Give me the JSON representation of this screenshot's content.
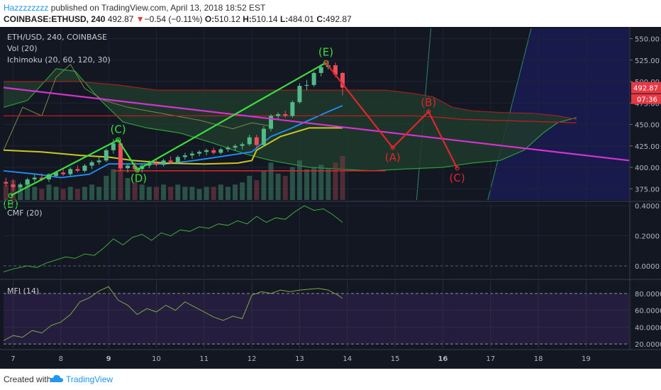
{
  "header": {
    "author": "Hazzzzzzzz",
    "published": "published on TradingView.com, April 13, 2018 18:52 EST",
    "symbol": "COINBASE:ETHUSD, 240",
    "last": "492.87",
    "change_arrow": "▼",
    "change": "−0.54 (−0.11%)",
    "open_label": "O:",
    "open": "510.12",
    "high_label": "H:",
    "high": "510.14",
    "low_label": "L:",
    "low": "484.01",
    "close_label": "C:",
    "close": "492.87"
  },
  "footer": {
    "created_with": "Created with",
    "brand": "TradingView",
    "logo_icon": "tradingview-cloud-icon"
  },
  "colors": {
    "background": "#131722",
    "candle_up": "#53b987",
    "candle_down": "#eb4d5c",
    "trendline": "#d433d0",
    "green_wave": "#3ddc3d",
    "red_wave": "#e0262a",
    "tenkan": "#1e90ff",
    "kijun": "#c8c820",
    "cloud": "#1f3a2c",
    "future_zone": "#191a4c",
    "price_badge": "#e53945"
  },
  "chart_data": [
    {
      "type": "line",
      "panel": "price",
      "labels": [
        "ETH/USD, 240, COINBASE",
        "Vol (20)",
        "Ichimoku (20, 60, 120, 30)"
      ],
      "yaxis_ticks": [
        "550.00",
        "525.00",
        "500.00",
        "475.00",
        "450.00",
        "425.00",
        "400.00",
        "375.00"
      ],
      "ylim": [
        362,
        562
      ],
      "xaxis_ticks": [
        "7",
        "8",
        "9",
        "10",
        "11",
        "12",
        "13",
        "14",
        "15",
        "16",
        "17",
        "18",
        "19"
      ],
      "xlim": [
        6.8,
        19.9
      ],
      "last_price_badge": "492.87",
      "countdown_badge": "07:36",
      "candles": [
        {
          "t": 6.85,
          "o": 383,
          "h": 388,
          "l": 378,
          "c": 381
        },
        {
          "t": 7.0,
          "o": 380,
          "h": 386,
          "l": 372,
          "c": 377
        },
        {
          "t": 7.15,
          "o": 377,
          "h": 382,
          "l": 372,
          "c": 380
        },
        {
          "t": 7.3,
          "o": 380,
          "h": 388,
          "l": 378,
          "c": 386
        },
        {
          "t": 7.45,
          "o": 386,
          "h": 392,
          "l": 383,
          "c": 388
        },
        {
          "t": 7.6,
          "o": 388,
          "h": 393,
          "l": 384,
          "c": 386
        },
        {
          "t": 7.75,
          "o": 386,
          "h": 393,
          "l": 383,
          "c": 392
        },
        {
          "t": 7.9,
          "o": 390,
          "h": 396,
          "l": 388,
          "c": 394
        },
        {
          "t": 8.05,
          "o": 394,
          "h": 398,
          "l": 390,
          "c": 392
        },
        {
          "t": 8.2,
          "o": 392,
          "h": 400,
          "l": 390,
          "c": 398
        },
        {
          "t": 8.35,
          "o": 398,
          "h": 402,
          "l": 394,
          "c": 396
        },
        {
          "t": 8.5,
          "o": 396,
          "h": 404,
          "l": 394,
          "c": 402
        },
        {
          "t": 8.65,
          "o": 402,
          "h": 408,
          "l": 398,
          "c": 406
        },
        {
          "t": 8.8,
          "o": 406,
          "h": 412,
          "l": 403,
          "c": 408
        },
        {
          "t": 8.95,
          "o": 408,
          "h": 422,
          "l": 406,
          "c": 420
        },
        {
          "t": 9.1,
          "o": 420,
          "h": 433,
          "l": 416,
          "c": 428
        },
        {
          "t": 9.25,
          "o": 428,
          "h": 432,
          "l": 396,
          "c": 399
        },
        {
          "t": 9.4,
          "o": 399,
          "h": 404,
          "l": 394,
          "c": 402
        },
        {
          "t": 9.55,
          "o": 402,
          "h": 406,
          "l": 396,
          "c": 398
        },
        {
          "t": 9.7,
          "o": 398,
          "h": 404,
          "l": 394,
          "c": 402
        },
        {
          "t": 9.85,
          "o": 402,
          "h": 408,
          "l": 399,
          "c": 405
        },
        {
          "t": 10.0,
          "o": 405,
          "h": 410,
          "l": 401,
          "c": 403
        },
        {
          "t": 10.15,
          "o": 403,
          "h": 410,
          "l": 401,
          "c": 408
        },
        {
          "t": 10.3,
          "o": 408,
          "h": 413,
          "l": 404,
          "c": 406
        },
        {
          "t": 10.45,
          "o": 406,
          "h": 414,
          "l": 404,
          "c": 412
        },
        {
          "t": 10.6,
          "o": 412,
          "h": 417,
          "l": 409,
          "c": 414
        },
        {
          "t": 10.75,
          "o": 414,
          "h": 419,
          "l": 410,
          "c": 416
        },
        {
          "t": 10.9,
          "o": 416,
          "h": 420,
          "l": 413,
          "c": 418
        },
        {
          "t": 11.05,
          "o": 418,
          "h": 422,
          "l": 414,
          "c": 420
        },
        {
          "t": 11.2,
          "o": 420,
          "h": 423,
          "l": 415,
          "c": 417
        },
        {
          "t": 11.35,
          "o": 417,
          "h": 423,
          "l": 415,
          "c": 421
        },
        {
          "t": 11.5,
          "o": 421,
          "h": 425,
          "l": 418,
          "c": 423
        },
        {
          "t": 11.65,
          "o": 423,
          "h": 427,
          "l": 419,
          "c": 425
        },
        {
          "t": 11.8,
          "o": 425,
          "h": 429,
          "l": 421,
          "c": 427
        },
        {
          "t": 11.95,
          "o": 427,
          "h": 438,
          "l": 425,
          "c": 435
        },
        {
          "t": 12.1,
          "o": 435,
          "h": 438,
          "l": 422,
          "c": 426
        },
        {
          "t": 12.25,
          "o": 426,
          "h": 448,
          "l": 424,
          "c": 445
        },
        {
          "t": 12.4,
          "o": 445,
          "h": 462,
          "l": 442,
          "c": 460
        },
        {
          "t": 12.55,
          "o": 460,
          "h": 464,
          "l": 455,
          "c": 462
        },
        {
          "t": 12.7,
          "o": 462,
          "h": 466,
          "l": 458,
          "c": 460
        },
        {
          "t": 12.85,
          "o": 460,
          "h": 478,
          "l": 458,
          "c": 476
        },
        {
          "t": 13.0,
          "o": 476,
          "h": 498,
          "l": 474,
          "c": 495
        },
        {
          "t": 13.15,
          "o": 495,
          "h": 502,
          "l": 490,
          "c": 496
        },
        {
          "t": 13.3,
          "o": 496,
          "h": 512,
          "l": 494,
          "c": 510
        },
        {
          "t": 13.45,
          "o": 510,
          "h": 520,
          "l": 506,
          "c": 517
        },
        {
          "t": 13.6,
          "o": 517,
          "h": 524,
          "l": 514,
          "c": 519
        },
        {
          "t": 13.75,
          "o": 519,
          "h": 522,
          "l": 505,
          "c": 508
        },
        {
          "t": 13.9,
          "o": 510,
          "h": 511,
          "l": 484,
          "c": 493
        }
      ],
      "volume": [
        {
          "t": 6.85,
          "v": 0.35,
          "up": false
        },
        {
          "t": 7.0,
          "v": 0.45,
          "up": false
        },
        {
          "t": 7.15,
          "v": 0.3,
          "up": true
        },
        {
          "t": 7.3,
          "v": 0.4,
          "up": true
        },
        {
          "t": 7.45,
          "v": 0.3,
          "up": true
        },
        {
          "t": 7.6,
          "v": 0.25,
          "up": false
        },
        {
          "t": 7.75,
          "v": 0.35,
          "up": true
        },
        {
          "t": 7.9,
          "v": 0.3,
          "up": true
        },
        {
          "t": 8.05,
          "v": 0.25,
          "up": false
        },
        {
          "t": 8.2,
          "v": 0.3,
          "up": true
        },
        {
          "t": 8.35,
          "v": 0.25,
          "up": false
        },
        {
          "t": 8.5,
          "v": 0.3,
          "up": true
        },
        {
          "t": 8.65,
          "v": 0.35,
          "up": true
        },
        {
          "t": 8.8,
          "v": 0.3,
          "up": true
        },
        {
          "t": 8.95,
          "v": 0.55,
          "up": true
        },
        {
          "t": 9.1,
          "v": 0.7,
          "up": true
        },
        {
          "t": 9.25,
          "v": 0.9,
          "up": false
        },
        {
          "t": 9.4,
          "v": 0.5,
          "up": true
        },
        {
          "t": 9.55,
          "v": 0.4,
          "up": false
        },
        {
          "t": 9.7,
          "v": 0.35,
          "up": true
        },
        {
          "t": 9.85,
          "v": 0.3,
          "up": true
        },
        {
          "t": 10.0,
          "v": 0.3,
          "up": false
        },
        {
          "t": 10.15,
          "v": 0.35,
          "up": true
        },
        {
          "t": 10.3,
          "v": 0.3,
          "up": false
        },
        {
          "t": 10.45,
          "v": 0.35,
          "up": true
        },
        {
          "t": 10.6,
          "v": 0.3,
          "up": true
        },
        {
          "t": 10.75,
          "v": 0.3,
          "up": true
        },
        {
          "t": 10.9,
          "v": 0.25,
          "up": true
        },
        {
          "t": 11.05,
          "v": 0.3,
          "up": true
        },
        {
          "t": 11.2,
          "v": 0.3,
          "up": false
        },
        {
          "t": 11.35,
          "v": 0.35,
          "up": true
        },
        {
          "t": 11.5,
          "v": 0.3,
          "up": true
        },
        {
          "t": 11.65,
          "v": 0.35,
          "up": true
        },
        {
          "t": 11.8,
          "v": 0.4,
          "up": true
        },
        {
          "t": 11.95,
          "v": 0.55,
          "up": true
        },
        {
          "t": 12.1,
          "v": 0.45,
          "up": false
        },
        {
          "t": 12.25,
          "v": 0.65,
          "up": true
        },
        {
          "t": 12.4,
          "v": 0.85,
          "up": true
        },
        {
          "t": 12.55,
          "v": 0.6,
          "up": true
        },
        {
          "t": 12.7,
          "v": 0.55,
          "up": false
        },
        {
          "t": 12.85,
          "v": 0.75,
          "up": true
        },
        {
          "t": 13.0,
          "v": 0.9,
          "up": true
        },
        {
          "t": 13.15,
          "v": 0.7,
          "up": true
        },
        {
          "t": 13.3,
          "v": 0.75,
          "up": true
        },
        {
          "t": 13.45,
          "v": 0.8,
          "up": true
        },
        {
          "t": 13.6,
          "v": 0.7,
          "up": true
        },
        {
          "t": 13.75,
          "v": 0.85,
          "up": false
        },
        {
          "t": 13.9,
          "v": 1.0,
          "up": false
        }
      ],
      "tenkan": [
        [
          6.8,
          396
        ],
        [
          7.5,
          392
        ],
        [
          8.0,
          388
        ],
        [
          8.6,
          392
        ],
        [
          9.0,
          404
        ],
        [
          9.6,
          404
        ],
        [
          10.2,
          404
        ],
        [
          10.8,
          408
        ],
        [
          11.4,
          413
        ],
        [
          12.0,
          418
        ],
        [
          12.4,
          436
        ],
        [
          12.8,
          445
        ],
        [
          13.2,
          455
        ],
        [
          13.6,
          465
        ],
        [
          13.9,
          472
        ]
      ],
      "kijun": [
        [
          6.8,
          420
        ],
        [
          7.6,
          418
        ],
        [
          8.4,
          414
        ],
        [
          9.0,
          412
        ],
        [
          9.5,
          408
        ],
        [
          10.2,
          405
        ],
        [
          11.0,
          404
        ],
        [
          11.7,
          405
        ],
        [
          12.0,
          408
        ],
        [
          12.1,
          420
        ],
        [
          12.6,
          436
        ],
        [
          13.2,
          446
        ],
        [
          13.9,
          446
        ]
      ],
      "senkou_a": [
        [
          6.8,
          470
        ],
        [
          7.3,
          478
        ],
        [
          7.9,
          515
        ],
        [
          8.3,
          512
        ],
        [
          8.8,
          480
        ],
        [
          9.3,
          453
        ],
        [
          9.8,
          446
        ],
        [
          10.5,
          440
        ],
        [
          11.2,
          428
        ],
        [
          11.9,
          415
        ],
        [
          12.4,
          408
        ],
        [
          13.2,
          400
        ],
        [
          13.8,
          398
        ],
        [
          14.5,
          396
        ],
        [
          15.2,
          398
        ],
        [
          16.0,
          400
        ],
        [
          16.6,
          405
        ],
        [
          17.2,
          408
        ],
        [
          17.7,
          420
        ],
        [
          18.1,
          440
        ],
        [
          18.4,
          452
        ],
        [
          18.8,
          458
        ]
      ],
      "senkou_b": [
        [
          6.8,
          500
        ],
        [
          7.6,
          500
        ],
        [
          8.4,
          500
        ],
        [
          9.2,
          496
        ],
        [
          10.0,
          490
        ],
        [
          10.8,
          490
        ],
        [
          11.6,
          490
        ],
        [
          12.4,
          490
        ],
        [
          13.2,
          490
        ],
        [
          14.0,
          490
        ],
        [
          14.8,
          490
        ],
        [
          15.4,
          486
        ],
        [
          15.8,
          482
        ],
        [
          16.2,
          470
        ],
        [
          16.6,
          466
        ],
        [
          17.2,
          464
        ],
        [
          17.9,
          463
        ],
        [
          18.4,
          460
        ],
        [
          18.8,
          456
        ]
      ],
      "chikou": [
        [
          6.8,
          420
        ],
        [
          7.2,
          470
        ],
        [
          7.6,
          460
        ],
        [
          7.9,
          505
        ],
        [
          8.2,
          520
        ],
        [
          8.5,
          492
        ],
        [
          8.9,
          478
        ],
        [
          9.4,
          470
        ],
        [
          10.2,
          462
        ],
        [
          10.9,
          455
        ],
        [
          11.6,
          445
        ],
        [
          12.0,
          452
        ],
        [
          12.4,
          448
        ]
      ],
      "resistance_line": [
        [
          6.8,
          493
        ],
        [
          19.9,
          408
        ]
      ],
      "support_line": [
        [
          9.1,
          396
        ],
        [
          14.8,
          396
        ]
      ],
      "upper_red_line": [
        [
          6.8,
          460
        ],
        [
          15.4,
          460
        ],
        [
          16.0,
          458
        ],
        [
          16.4,
          456
        ],
        [
          18.8,
          452
        ]
      ],
      "green_wave": [
        {
          "label": "(B)",
          "t": 6.95,
          "p": 367
        },
        {
          "label": "(C)",
          "t": 9.2,
          "p": 432
        },
        {
          "label": "(D)",
          "t": 9.6,
          "p": 397
        },
        {
          "label": "(E)",
          "t": 13.55,
          "p": 522
        }
      ],
      "red_wave": [
        {
          "label": "",
          "t": 13.55,
          "p": 522
        },
        {
          "label": "(A)",
          "t": 14.95,
          "p": 423
        },
        {
          "label": "(B)",
          "t": 15.7,
          "p": 465
        },
        {
          "label": "(C)",
          "t": 16.3,
          "p": 399
        }
      ],
      "future_zone_start": 17.0
    },
    {
      "type": "line",
      "panel": "cmf",
      "title": "CMF (20)",
      "yaxis_ticks": [
        "0.4000",
        "0.2000",
        "0.0000"
      ],
      "ylim": [
        -0.08,
        0.42
      ],
      "x": [
        6.8,
        7.0,
        7.3,
        7.5,
        7.7,
        7.9,
        8.1,
        8.3,
        8.5,
        8.7,
        8.9,
        9.1,
        9.3,
        9.5,
        9.7,
        9.9,
        10.1,
        10.3,
        10.5,
        10.7,
        10.9,
        11.1,
        11.3,
        11.5,
        11.7,
        11.9,
        12.1,
        12.3,
        12.5,
        12.7,
        12.9,
        13.1,
        13.3,
        13.5,
        13.7,
        13.9
      ],
      "values": [
        -0.04,
        -0.02,
        0.0,
        -0.01,
        0.02,
        0.04,
        0.06,
        0.05,
        0.08,
        0.07,
        0.12,
        0.18,
        0.14,
        0.19,
        0.21,
        0.17,
        0.22,
        0.2,
        0.24,
        0.23,
        0.26,
        0.25,
        0.28,
        0.27,
        0.3,
        0.28,
        0.33,
        0.29,
        0.32,
        0.31,
        0.36,
        0.4,
        0.37,
        0.38,
        0.34,
        0.29
      ]
    },
    {
      "type": "line",
      "panel": "mfi",
      "title": "MFI (14)",
      "yaxis_ticks": [
        "80.0000",
        "60.0000",
        "40.0000",
        "20.0000"
      ],
      "ylim": [
        15,
        95
      ],
      "x": [
        6.8,
        7.0,
        7.2,
        7.4,
        7.6,
        7.8,
        8.0,
        8.2,
        8.4,
        8.6,
        8.8,
        9.0,
        9.2,
        9.4,
        9.6,
        9.8,
        10.0,
        10.2,
        10.4,
        10.6,
        10.8,
        11.0,
        11.2,
        11.4,
        11.6,
        11.8,
        12.0,
        12.2,
        12.4,
        12.6,
        12.8,
        13.0,
        13.2,
        13.4,
        13.6,
        13.8,
        13.9
      ],
      "values": [
        24,
        30,
        28,
        36,
        33,
        42,
        46,
        55,
        70,
        75,
        83,
        88,
        72,
        66,
        55,
        62,
        58,
        66,
        60,
        70,
        64,
        58,
        52,
        48,
        53,
        50,
        78,
        82,
        80,
        84,
        82,
        84,
        85,
        86,
        84,
        78,
        74
      ]
    }
  ]
}
